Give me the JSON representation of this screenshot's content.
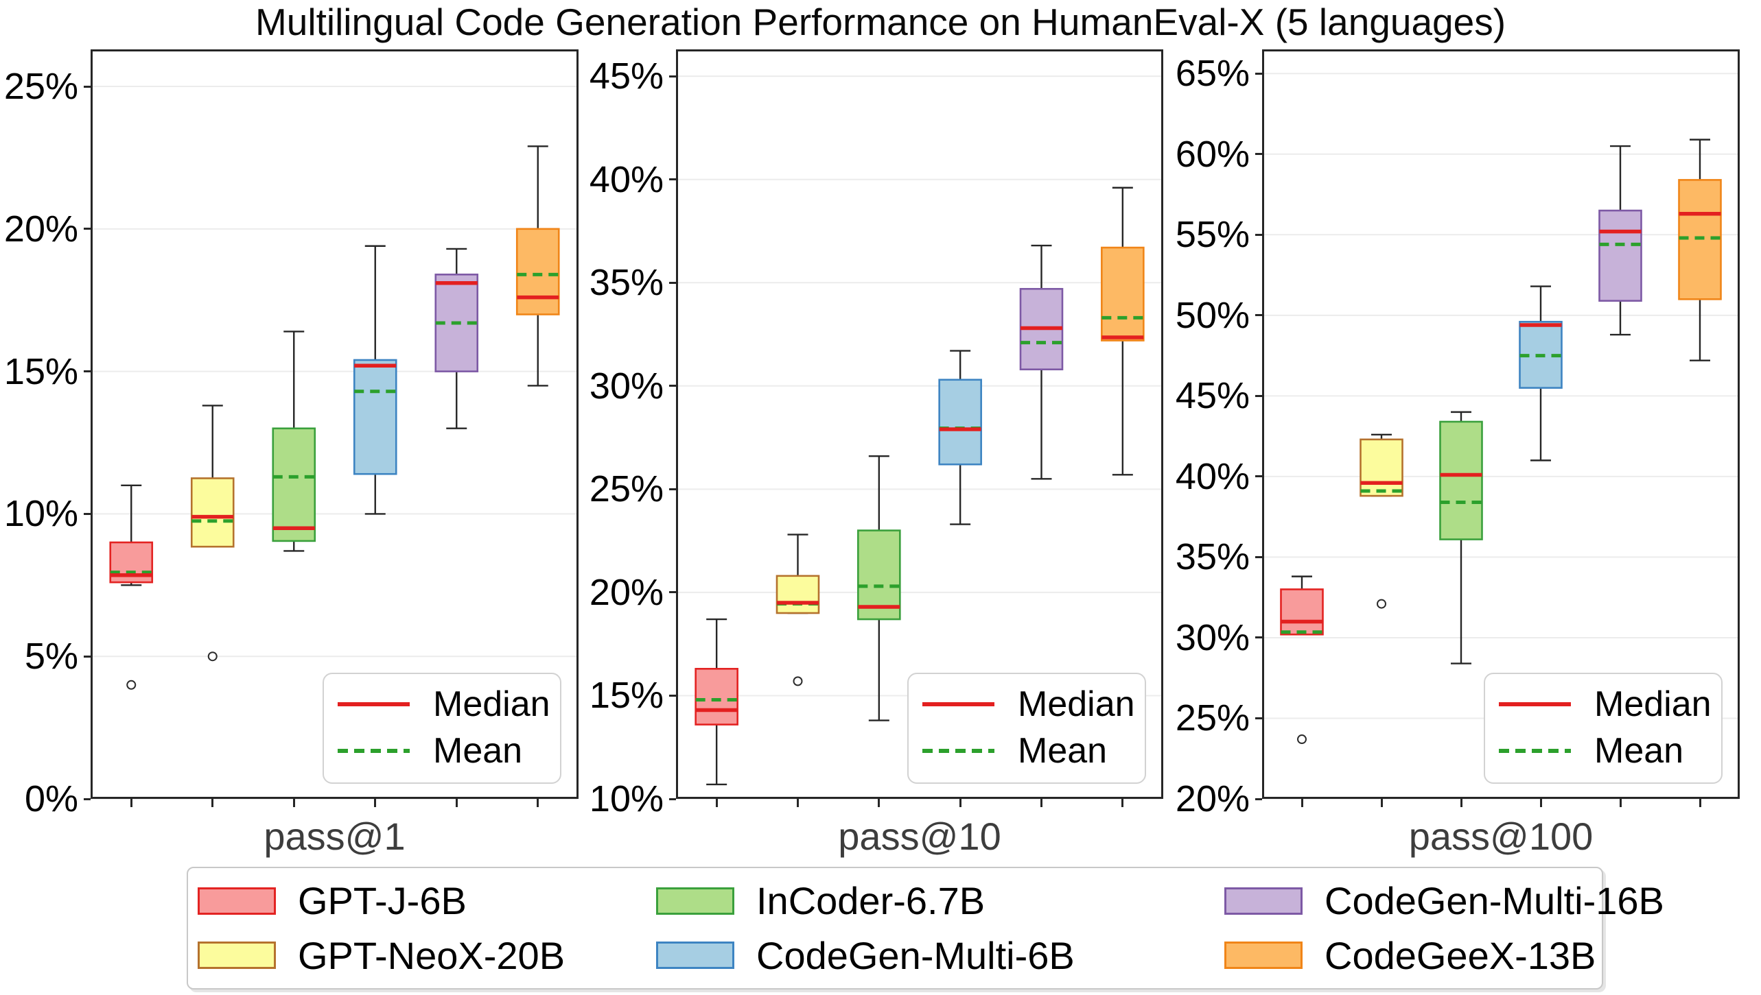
{
  "chart_data": {
    "type": "box",
    "title": "Multilingual Code Generation Performance on HumanEval-X (5 languages)",
    "grid": "horizontal-light-gray",
    "legend_position": "bottom-center",
    "inner_legend": {
      "median_label": "Median",
      "mean_label": "Mean",
      "median_color": "#e32020",
      "mean_color": "#2ca02c"
    },
    "models": [
      {
        "name": "GPT-J-6B",
        "fill": "#f89b9b",
        "edge": "#e32322"
      },
      {
        "name": "GPT-NeoX-20B",
        "fill": "#fcfc9d",
        "edge": "#b5722d"
      },
      {
        "name": "InCoder-6.7B",
        "fill": "#aedd88",
        "edge": "#3aa03c"
      },
      {
        "name": "CodeGen-Multi-6B",
        "fill": "#a6cee3",
        "edge": "#3d84c2"
      },
      {
        "name": "CodeGen-Multi-16B",
        "fill": "#c7b2d9",
        "edge": "#7d59a5"
      },
      {
        "name": "CodeGeeX-13B",
        "fill": "#fdb964",
        "edge": "#f08518"
      }
    ],
    "panels": [
      {
        "xlabel": "pass@1",
        "ylim": [
          0,
          26.3
        ],
        "yticks": [
          0,
          5,
          10,
          15,
          20,
          25
        ],
        "yticklabels": [
          "0%",
          "5%",
          "10%",
          "15%",
          "20%",
          "25%"
        ],
        "boxes": [
          {
            "model": "GPT-J-6B",
            "whislo": 7.5,
            "q1": 7.6,
            "med": 7.85,
            "mean": 7.95,
            "q3": 9.0,
            "whishi": 11.0,
            "fliers": [
              4.0
            ]
          },
          {
            "model": "GPT-NeoX-20B",
            "whislo": 8.85,
            "q1": 8.85,
            "med": 9.9,
            "mean": 9.75,
            "q3": 11.25,
            "whishi": 13.8,
            "fliers": [
              5.0
            ]
          },
          {
            "model": "InCoder-6.7B",
            "whislo": 8.7,
            "q1": 9.05,
            "med": 9.5,
            "mean": 11.3,
            "q3": 13.0,
            "whishi": 16.4,
            "fliers": []
          },
          {
            "model": "CodeGen-Multi-6B",
            "whislo": 10.0,
            "q1": 11.4,
            "med": 15.2,
            "mean": 14.3,
            "q3": 15.4,
            "whishi": 19.4,
            "fliers": []
          },
          {
            "model": "CodeGen-Multi-16B",
            "whislo": 13.0,
            "q1": 15.0,
            "med": 18.1,
            "mean": 16.7,
            "q3": 18.4,
            "whishi": 19.3,
            "fliers": []
          },
          {
            "model": "CodeGeeX-13B",
            "whislo": 14.5,
            "q1": 17.0,
            "med": 17.6,
            "mean": 18.4,
            "q3": 20.0,
            "whishi": 22.9,
            "fliers": []
          }
        ]
      },
      {
        "xlabel": "pass@10",
        "ylim": [
          10,
          46.3
        ],
        "yticks": [
          10,
          15,
          20,
          25,
          30,
          35,
          40,
          45
        ],
        "yticklabels": [
          "10%",
          "15%",
          "20%",
          "25%",
          "30%",
          "35%",
          "40%",
          "45%"
        ],
        "boxes": [
          {
            "model": "GPT-J-6B",
            "whislo": 10.7,
            "q1": 13.6,
            "med": 14.3,
            "mean": 14.8,
            "q3": 16.3,
            "whishi": 18.7,
            "fliers": []
          },
          {
            "model": "GPT-NeoX-20B",
            "whislo": 19.0,
            "q1": 19.0,
            "med": 19.5,
            "mean": 19.45,
            "q3": 20.8,
            "whishi": 22.8,
            "fliers": [
              15.7
            ]
          },
          {
            "model": "InCoder-6.7B",
            "whislo": 13.8,
            "q1": 18.7,
            "med": 19.3,
            "mean": 20.3,
            "q3": 23.0,
            "whishi": 26.6,
            "fliers": []
          },
          {
            "model": "CodeGen-Multi-6B",
            "whislo": 23.3,
            "q1": 26.2,
            "med": 27.9,
            "mean": 27.95,
            "q3": 30.3,
            "whishi": 31.7,
            "fliers": []
          },
          {
            "model": "CodeGen-Multi-16B",
            "whislo": 25.5,
            "q1": 30.8,
            "med": 32.8,
            "mean": 32.1,
            "q3": 34.7,
            "whishi": 36.8,
            "fliers": []
          },
          {
            "model": "CodeGeeX-13B",
            "whislo": 25.7,
            "q1": 32.2,
            "med": 32.35,
            "mean": 33.3,
            "q3": 36.7,
            "whishi": 39.6,
            "fliers": []
          }
        ]
      },
      {
        "xlabel": "pass@100",
        "ylim": [
          20,
          66.5
        ],
        "yticks": [
          20,
          25,
          30,
          35,
          40,
          45,
          50,
          55,
          60,
          65
        ],
        "yticklabels": [
          "20%",
          "25%",
          "30%",
          "35%",
          "40%",
          "45%",
          "50%",
          "55%",
          "60%",
          "65%"
        ],
        "boxes": [
          {
            "model": "GPT-J-6B",
            "whislo": 30.2,
            "q1": 30.2,
            "med": 31.0,
            "mean": 30.35,
            "q3": 33.0,
            "whishi": 33.8,
            "fliers": [
              23.7
            ]
          },
          {
            "model": "GPT-NeoX-20B",
            "whislo": 38.8,
            "q1": 38.8,
            "med": 39.6,
            "mean": 39.1,
            "q3": 42.3,
            "whishi": 42.6,
            "fliers": [
              32.1
            ]
          },
          {
            "model": "InCoder-6.7B",
            "whislo": 28.4,
            "q1": 36.1,
            "med": 40.1,
            "mean": 38.4,
            "q3": 43.4,
            "whishi": 44.0,
            "fliers": []
          },
          {
            "model": "CodeGen-Multi-6B",
            "whislo": 41.0,
            "q1": 45.5,
            "med": 49.4,
            "mean": 47.5,
            "q3": 49.6,
            "whishi": 51.8,
            "fliers": []
          },
          {
            "model": "CodeGen-Multi-16B",
            "whislo": 48.8,
            "q1": 50.9,
            "med": 55.2,
            "mean": 54.4,
            "q3": 56.5,
            "whishi": 60.5,
            "fliers": []
          },
          {
            "model": "CodeGeeX-13B",
            "whislo": 47.2,
            "q1": 51.0,
            "med": 56.3,
            "mean": 54.8,
            "q3": 58.4,
            "whishi": 60.9,
            "fliers": []
          }
        ]
      }
    ]
  }
}
